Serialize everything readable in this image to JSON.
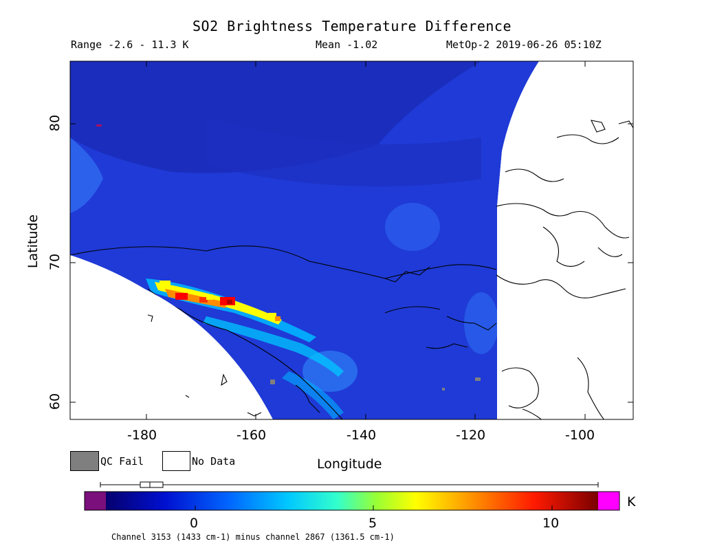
{
  "header": {
    "title": "SO2 Brightness Temperature Difference",
    "range": "Range -2.6 - 11.3 K",
    "mean": "Mean -1.02",
    "source": "MetOp-2 2019-06-26 05:10Z"
  },
  "axes": {
    "ylabel": "Latitude",
    "xlabel": "Longitude",
    "y_ticks": [
      "80",
      "70",
      "60"
    ],
    "x_ticks": [
      "-180",
      "-160",
      "-140",
      "-120",
      "-100"
    ],
    "lon_range": [
      -193,
      -92
    ],
    "lat_range": [
      59,
      83
    ]
  },
  "legend": {
    "qc_fail": "QC Fail",
    "no_data": "No Data",
    "qc_color": "#7f7f7f"
  },
  "colorbar": {
    "unit": "K",
    "ticks": [
      "0",
      "5",
      "10"
    ],
    "range": [
      -2.6,
      11.3
    ],
    "under_color": "#7b0f7b",
    "over_color": "#ff00ff"
  },
  "footnote": "Channel 3153 (1433 cm-1) minus channel 2867 (1361.5 cm-1)",
  "map": {
    "background_color": "#1f3ad6",
    "plume_colors": [
      "#ffff00",
      "#ff8c00",
      "#ff0000",
      "#b00000",
      "#00c8ff",
      "#35e0ff"
    ]
  }
}
